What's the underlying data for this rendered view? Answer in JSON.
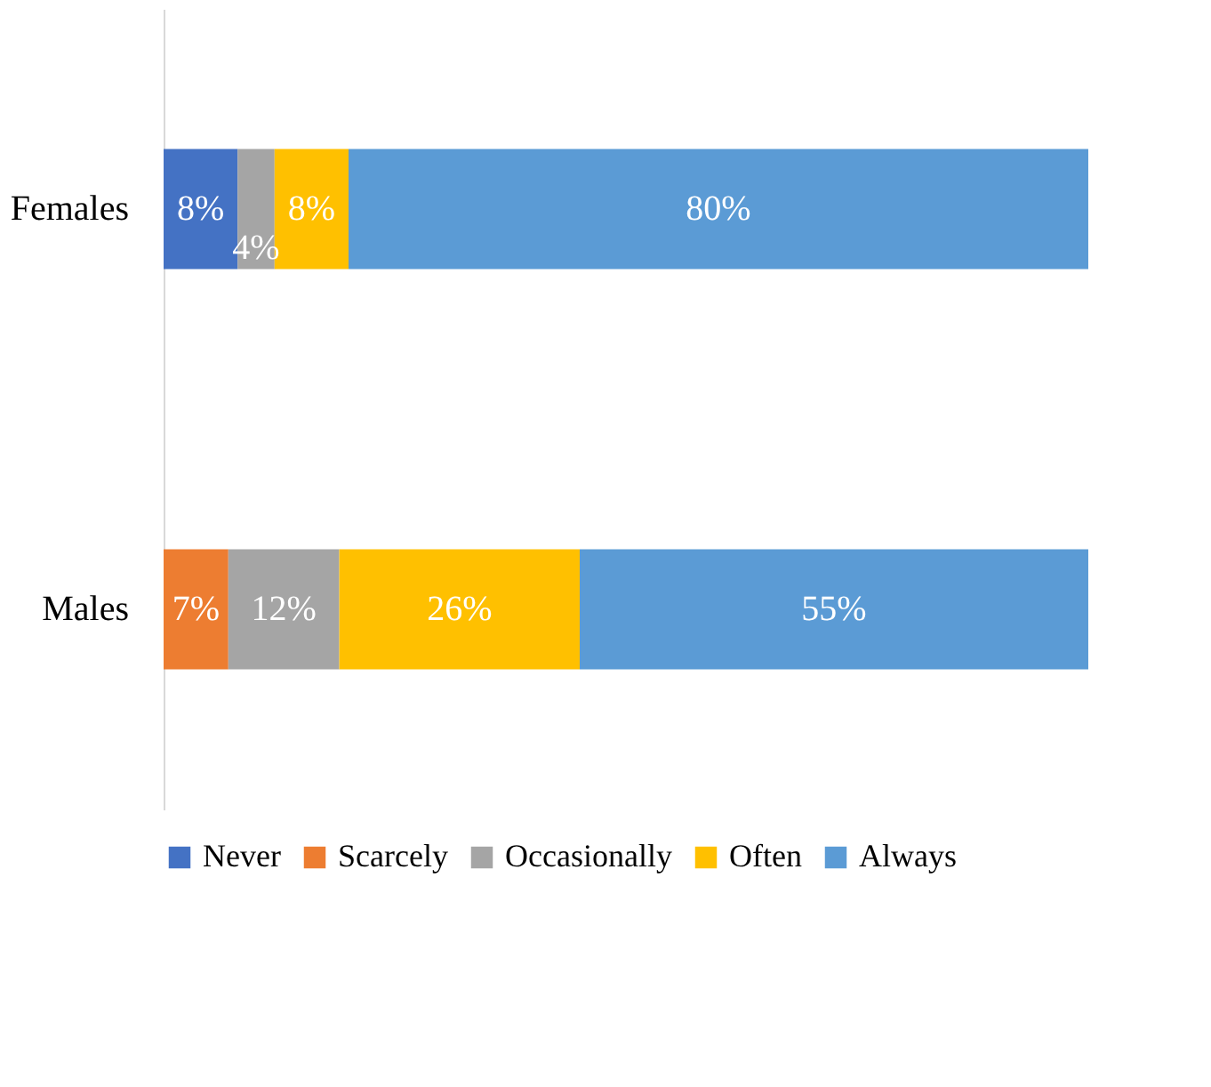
{
  "chart_data": {
    "type": "bar",
    "orientation": "horizontal",
    "stacked": true,
    "categories": [
      "Females",
      "Males"
    ],
    "series": [
      {
        "name": "Never",
        "color": "#4472c4",
        "values": [
          8,
          null
        ],
        "value_labels": [
          "8%",
          null
        ]
      },
      {
        "name": "Scarcely",
        "color": "#ed7d31",
        "values": [
          null,
          7
        ],
        "value_labels": [
          null,
          "7%"
        ]
      },
      {
        "name": "Occasionally",
        "color": "#a5a5a5",
        "values": [
          4,
          12
        ],
        "value_labels": [
          "4%",
          "12%"
        ]
      },
      {
        "name": "Often",
        "color": "#ffc000",
        "values": [
          8,
          26
        ],
        "value_labels": [
          "8%",
          "26%"
        ]
      },
      {
        "name": "Always",
        "color": "#5b9bd5",
        "values": [
          80,
          55
        ],
        "value_labels": [
          "80%",
          "55%"
        ]
      }
    ],
    "legend": "bottom",
    "grid": false
  }
}
